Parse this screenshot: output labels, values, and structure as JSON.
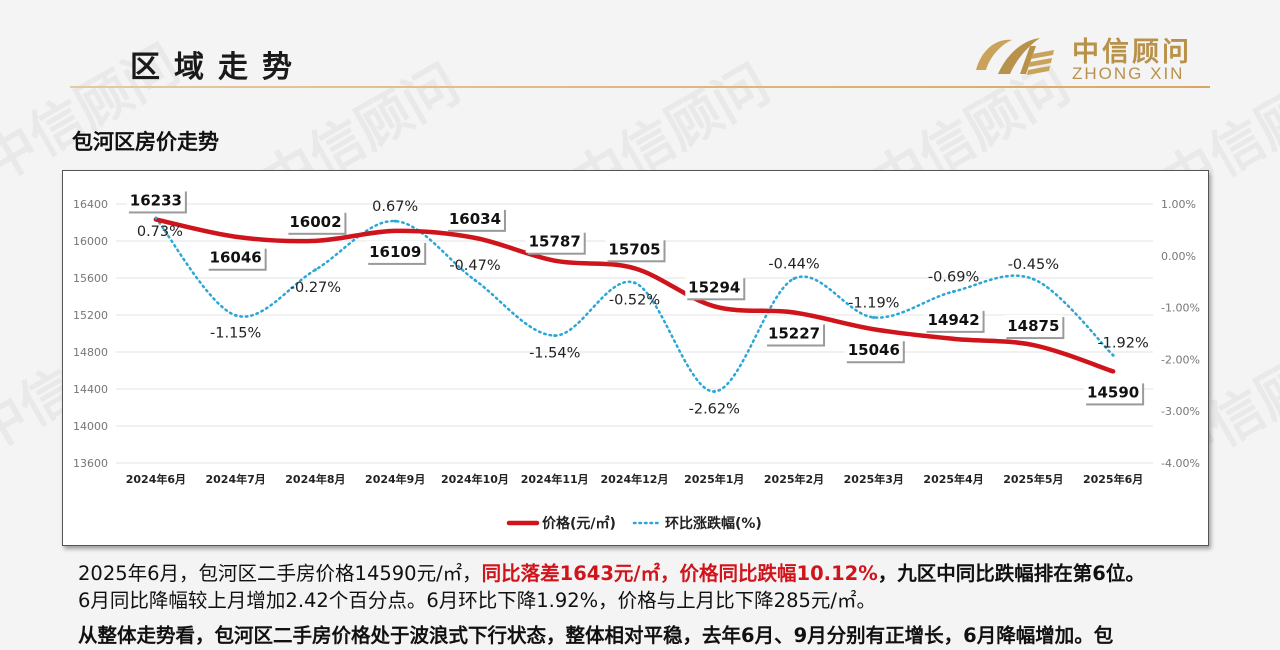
{
  "header": {
    "title": "区域走势"
  },
  "logo": {
    "brand_cn": "中信顾问",
    "brand_en": "ZHONG XIN"
  },
  "watermark": "中信顾问",
  "section": {
    "title": "包河区房价走势"
  },
  "colors": {
    "price_line": "#d0141c",
    "mom_line": "#2aa7d6",
    "accent": "#b8924a"
  },
  "chart_data": {
    "type": "line",
    "categories": [
      "2024年6月",
      "2024年7月",
      "2024年8月",
      "2024年9月",
      "2024年10月",
      "2024年11月",
      "2024年12月",
      "2025年1月",
      "2025年2月",
      "2025年3月",
      "2025年4月",
      "2025年5月",
      "2025年6月"
    ],
    "series": [
      {
        "name": "价格(元/㎡)",
        "axis": "left",
        "style": "solid",
        "values": [
          16233,
          16046,
          16002,
          16109,
          16034,
          15787,
          15705,
          15294,
          15227,
          15046,
          14942,
          14875,
          14590
        ],
        "labels": [
          "16233",
          "16046",
          "16002",
          "16109",
          "16034",
          "15787",
          "15705",
          "15294",
          "15227",
          "15046",
          "14942",
          "14875",
          "14590"
        ]
      },
      {
        "name": "环比涨跌幅(%)",
        "axis": "right",
        "style": "dotted",
        "values": [
          0.73,
          -1.15,
          -0.27,
          0.67,
          -0.47,
          -1.54,
          -0.52,
          -2.62,
          -0.44,
          -1.19,
          -0.69,
          -0.45,
          -1.92
        ],
        "labels": [
          "0.73%",
          "-1.15%",
          "-0.27%",
          "0.67%",
          "-0.47%",
          "-1.54%",
          "-0.52%",
          "-2.62%",
          "-0.44%",
          "-1.19%",
          "-0.69%",
          "-0.45%",
          "-1.92%"
        ]
      }
    ],
    "y_left": {
      "min": 13600,
      "max": 16400,
      "ticks": [
        "13600",
        "14000",
        "14400",
        "14800",
        "15200",
        "15600",
        "16000",
        "16400"
      ]
    },
    "y_right": {
      "min": -4,
      "max": 1,
      "ticks": [
        "-4.00%",
        "-3.00%",
        "-2.00%",
        "-1.00%",
        "0.00%",
        "1.00%"
      ]
    },
    "grid": true,
    "legend": "bottom"
  },
  "paragraphs": {
    "p1_a": "2025年6月，包河区二手房价格14590元/㎡，",
    "p1_b": "同比落差1643元/㎡，价格同比跌幅10.12%",
    "p1_c": "，九区中同比跌幅排在第6位。",
    "p2": "6月同比降幅较上月增加2.42个百分点。6月环比下降1.92%，价格与上月比下降285元/㎡。",
    "p3": "从整体走势看，包河区二手房价格处于波浪式下行状态，整体相对平稳，去年6月、9月分别有正增长，6月降幅增加。包"
  }
}
